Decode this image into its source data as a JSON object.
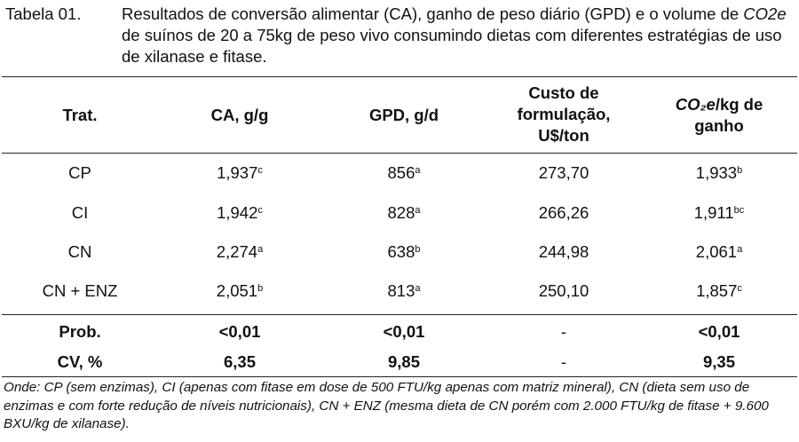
{
  "caption": {
    "label": "Tabela 01.",
    "text_a": "Resultados de conversão alimentar (CA), ganho de peso diário (GPD) e o volume de ",
    "text_em": "CO2e",
    "text_b": " de suínos de 20 a 75kg de peso vivo consumindo dietas com diferentes estratégias de uso de xilanase e fitase."
  },
  "table": {
    "headers": {
      "trat": "Trat.",
      "ca": "CA, g/g",
      "gpd": "GPD, g/d",
      "custo_l1": "Custo de",
      "custo_l2": "formulação,",
      "custo_l3": "U$/ton",
      "co2_em": "CO₂e",
      "co2_rest": "/kg de",
      "co2_l2": "ganho"
    },
    "rows": [
      {
        "trat": "CP",
        "ca": "1,937",
        "ca_sup": "c",
        "gpd": "856",
        "gpd_sup": "a",
        "custo": "273,70",
        "co2": "1,933",
        "co2_sup": "b"
      },
      {
        "trat": "CI",
        "ca": "1,942",
        "ca_sup": "c",
        "gpd": "828",
        "gpd_sup": "a",
        "custo": "266,26",
        "co2": "1,911",
        "co2_sup": "bc"
      },
      {
        "trat": "CN",
        "ca": "2,274",
        "ca_sup": "a",
        "gpd": "638",
        "gpd_sup": "b",
        "custo": "244,98",
        "co2": "2,061",
        "co2_sup": "a"
      },
      {
        "trat": "CN + ENZ",
        "ca": "2,051",
        "ca_sup": "b",
        "gpd": "813",
        "gpd_sup": "a",
        "custo": "250,10",
        "co2": "1,857",
        "co2_sup": "c"
      }
    ],
    "stats": [
      {
        "trat": "Prob.",
        "ca": "<0,01",
        "gpd": "<0,01",
        "custo": "-",
        "co2": "<0,01"
      },
      {
        "trat": "CV, %",
        "ca": "6,35",
        "gpd": "9,85",
        "custo": "-",
        "co2": "9,35"
      }
    ]
  },
  "footnote": "Onde: CP (sem enzimas), CI (apenas com fitase em dose de 500 FTU/kg apenas com matriz mineral), CN (dieta sem uso de enzimas e com forte redução de níveis nutricionais), CN + ENZ (mesma dieta de CN porém com 2.000 FTU/kg de fitase + 9.600 BXU/kg de xilanase)."
}
